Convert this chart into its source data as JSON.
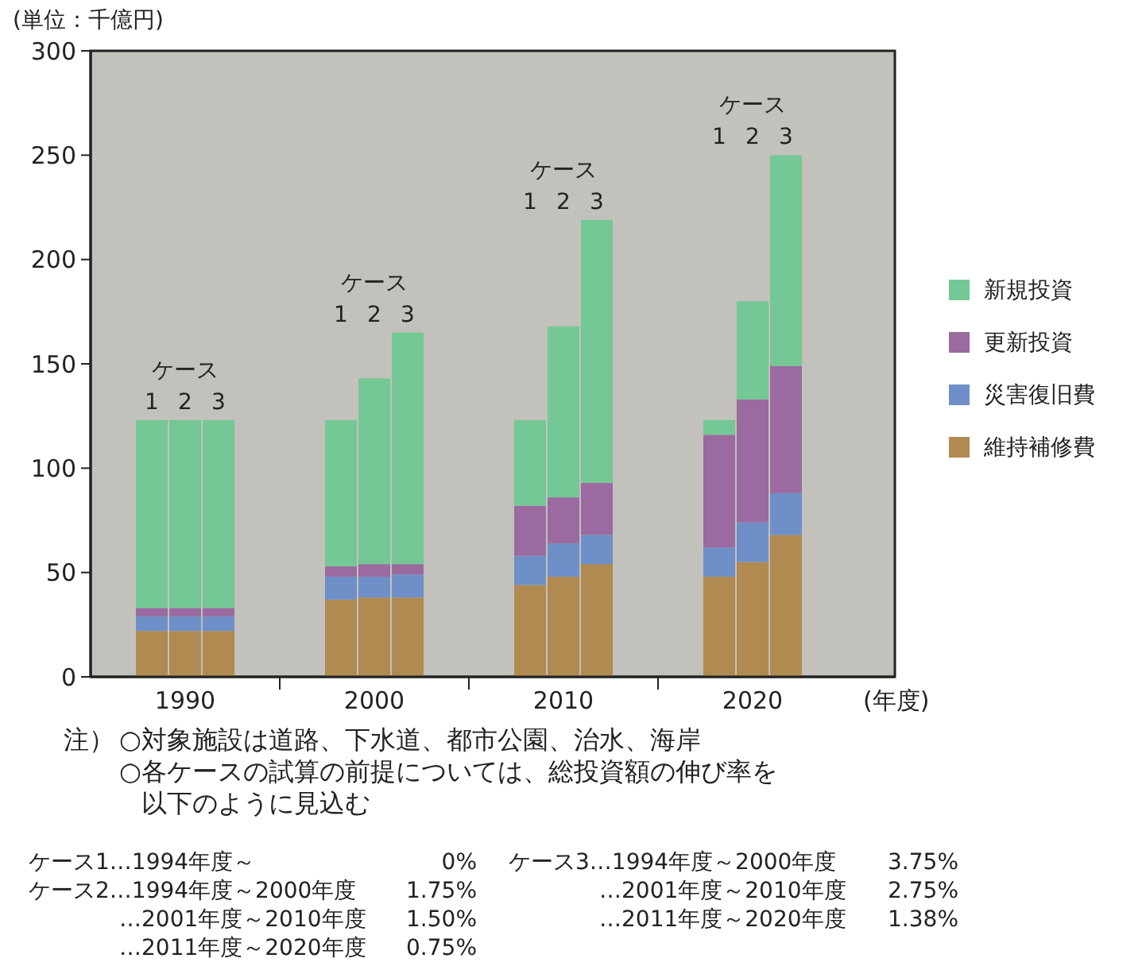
{
  "chart_data": {
    "type": "bar",
    "stacked": true,
    "ylabel": "(単位：千億円)",
    "xlabel": "(年度)",
    "categories": [
      null,
      "1990",
      null,
      null,
      "2000",
      null,
      null,
      "2010",
      null,
      null,
      "2020",
      null
    ],
    "series": [
      {
        "name": "維持補修費",
        "color": "#b08a50",
        "values": [
          22,
          22,
          22,
          37,
          38,
          38,
          44,
          48,
          54,
          48,
          55,
          68
        ]
      },
      {
        "name": "災害復旧費",
        "color": "#6f8fc8",
        "values": [
          7,
          7,
          7,
          11,
          10,
          11,
          14,
          16,
          14,
          14,
          19,
          20
        ]
      },
      {
        "name": "更新投資",
        "color": "#9a6aa0",
        "values": [
          4,
          4,
          4,
          5,
          6,
          5,
          24,
          22,
          25,
          54,
          59,
          61
        ]
      },
      {
        "name": "新規投資",
        "color": "#74c896",
        "values": [
          90,
          90,
          90,
          70,
          89,
          111,
          41,
          82,
          126,
          7,
          47,
          101
        ]
      }
    ],
    "ylim": [
      0,
      300
    ],
    "yticks": [
      0,
      50,
      100,
      150,
      200,
      250,
      300
    ],
    "grid": false,
    "legend": "right",
    "annotations": [
      "ケース",
      "ケース",
      "ケース",
      "ケース",
      "1",
      "2",
      "3",
      "1",
      "2",
      "3",
      "1",
      "2",
      "3",
      "1",
      "2",
      "3",
      "注）",
      "○対象施設は道路、下水道、都市公園、治水、海岸",
      "○各ケースの試算の前提については、総投資額の伸び率を",
      "以下のように見込む",
      "ケース1…1994年度～",
      "0%",
      "ケース2…1994年度～2000年度",
      "1.75%",
      "…2001年度～2010年度",
      "1.50%",
      "…2011年度～2020年度",
      "0.75%",
      "ケース3…1994年度～2000年度",
      "3.75%",
      "…2001年度～2010年度",
      "2.75%",
      "…2011年度～2020年度",
      "1.38%"
    ]
  }
}
